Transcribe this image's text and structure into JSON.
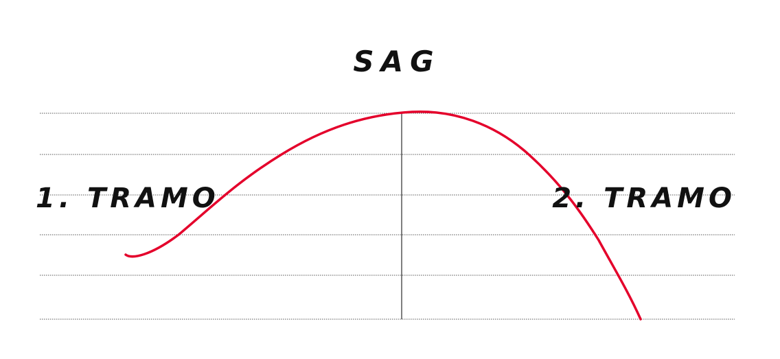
{
  "diagram": {
    "title": "SAG",
    "left_label": "1. TRAMO",
    "right_label": "2. TRAMO",
    "colors": {
      "curve": "#e4002b",
      "gridline": "#555555",
      "center_line": "#555555",
      "text": "#111111",
      "background": "#ffffff"
    },
    "gridline_count": 6,
    "gridline_style": "dotted"
  }
}
